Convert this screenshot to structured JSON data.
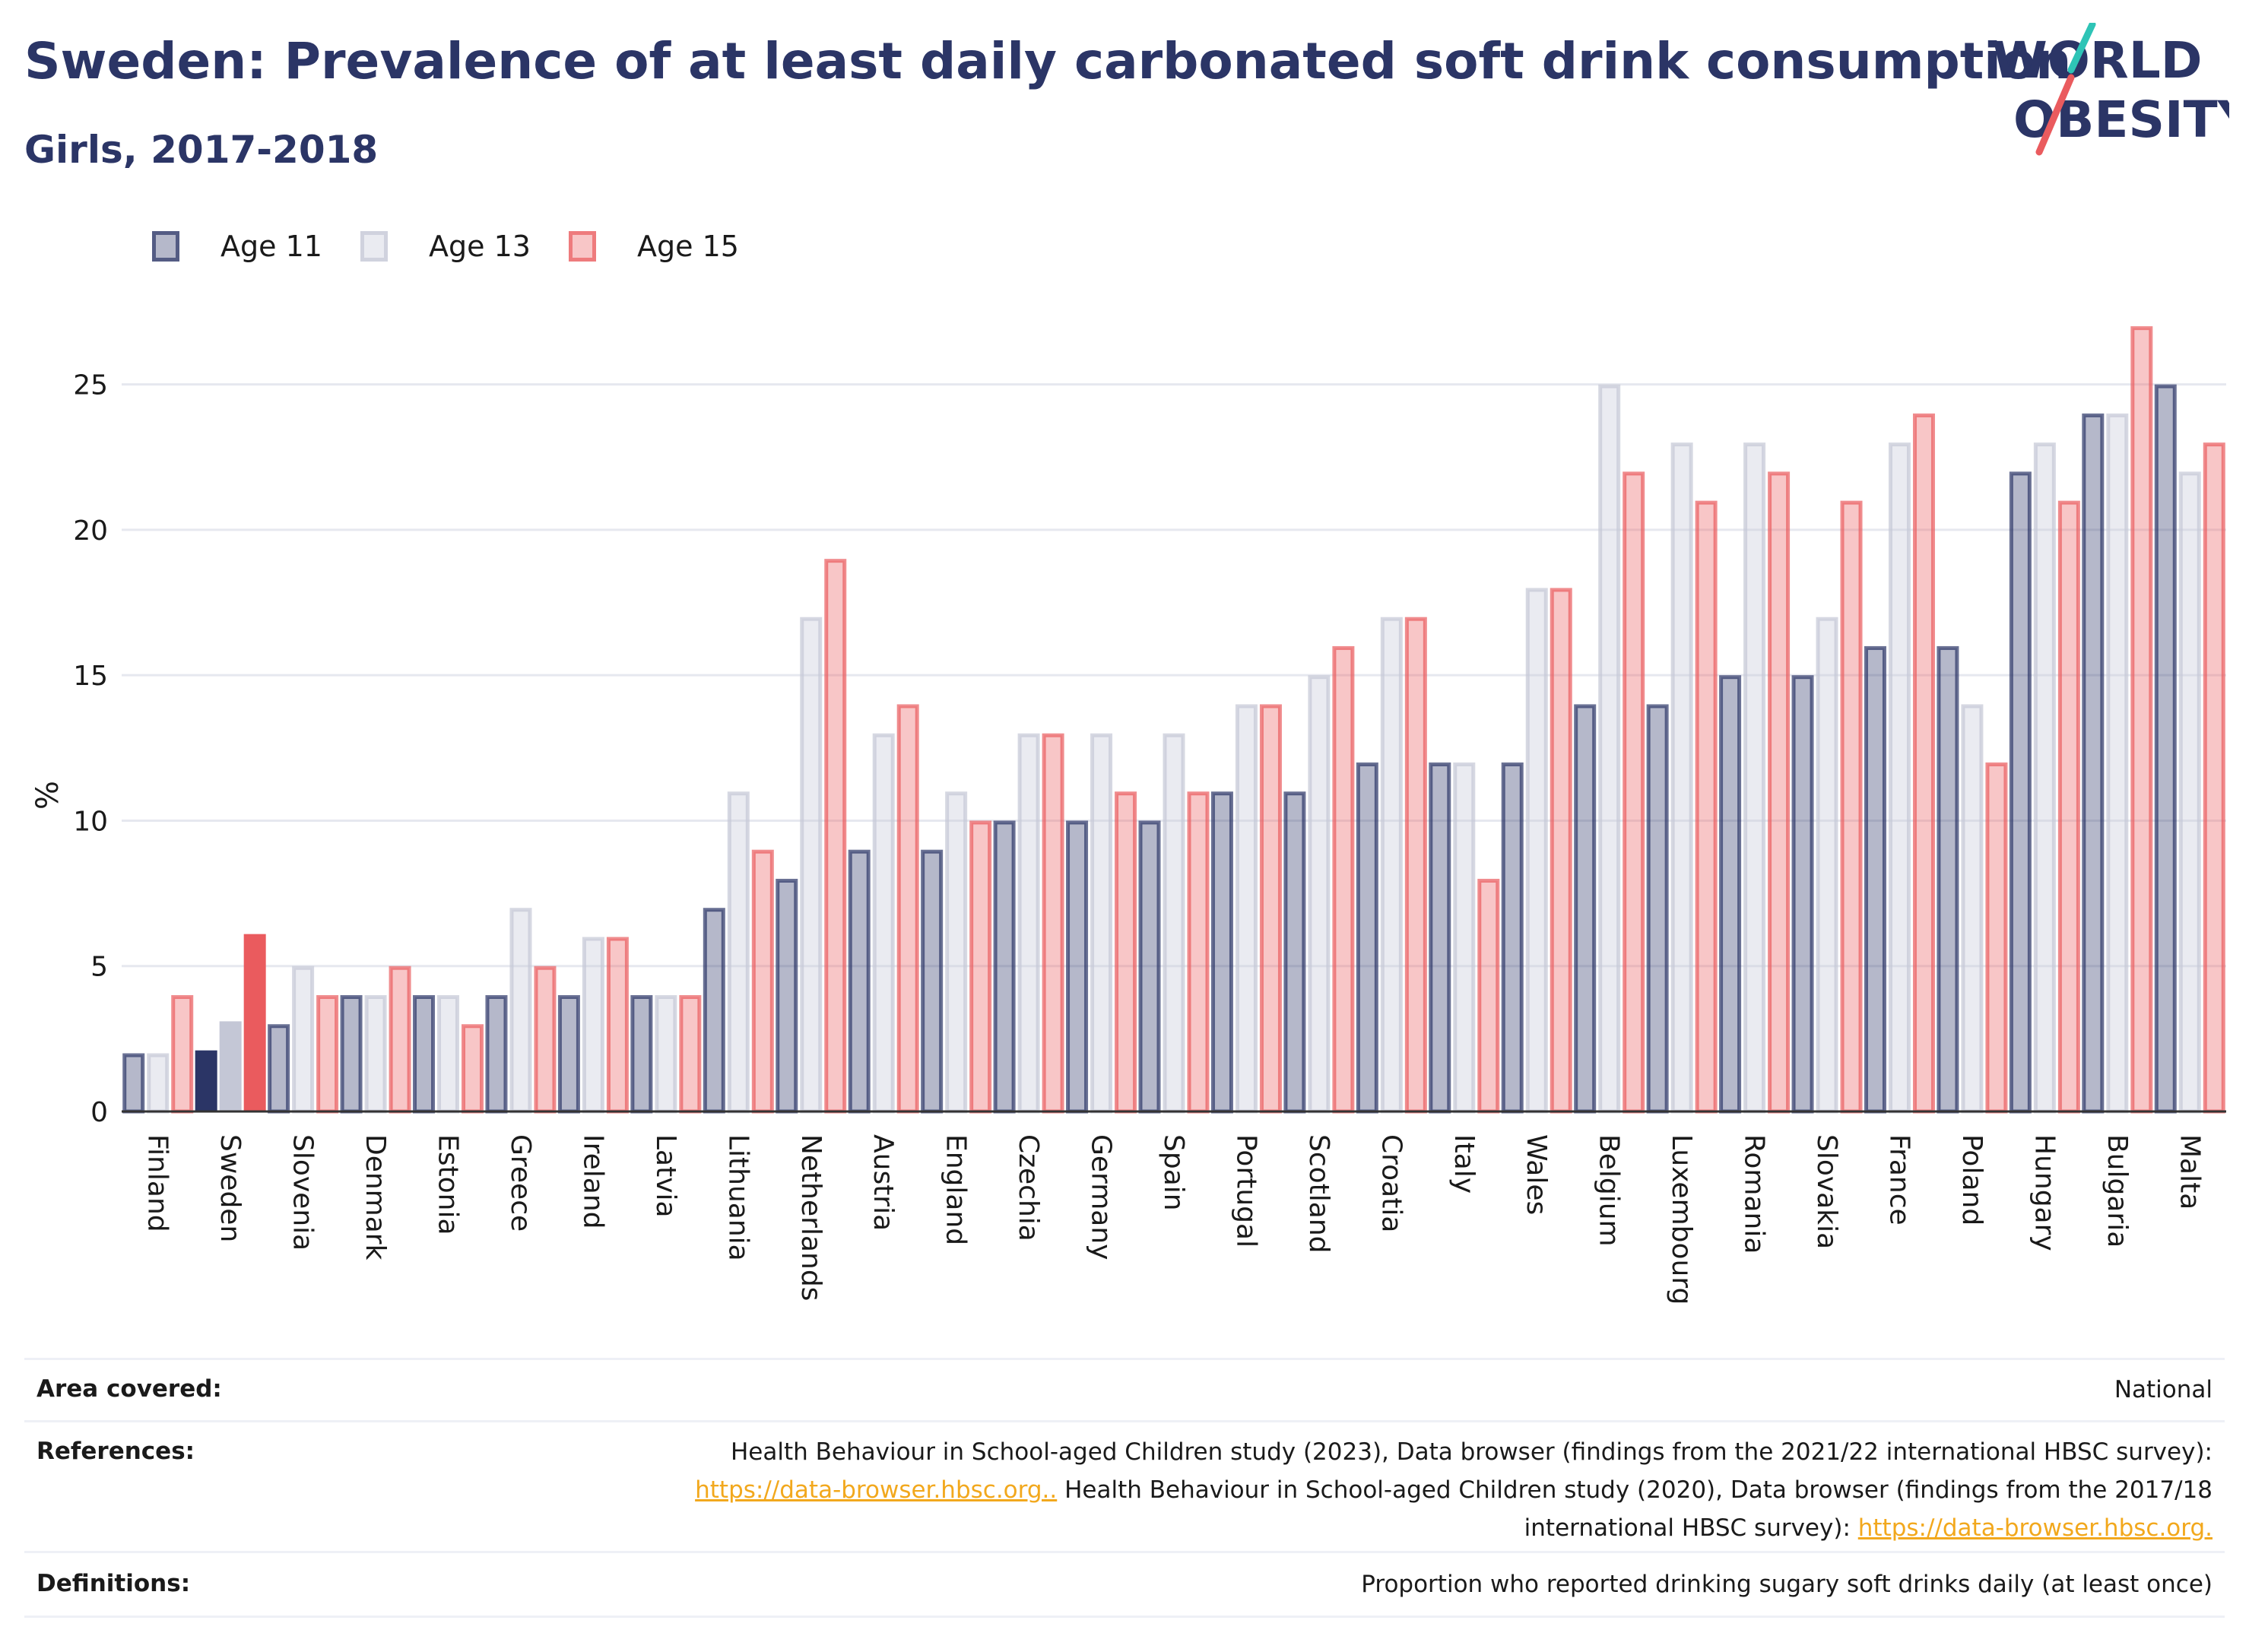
{
  "header": {
    "title": "Sweden: Prevalence of at least daily carbonated soft drink consumption",
    "subtitle": "Girls, 2017-2018"
  },
  "logo": {
    "line1": "WORLD",
    "line2": "OBESITY"
  },
  "legend": [
    {
      "label": "Age 11",
      "color": "#2b3566"
    },
    {
      "label": "Age 13",
      "color": "#c4c7d6"
    },
    {
      "label": "Age 15",
      "color": "#ea5b5e"
    }
  ],
  "chart_data": {
    "type": "bar",
    "ylabel": "%",
    "xlabel": "",
    "ylim": [
      0,
      27.5
    ],
    "yticks": [
      0,
      5,
      10,
      15,
      20,
      25
    ],
    "grid": true,
    "legend_position": "top-left",
    "highlight_category": "Sweden",
    "categories": [
      "Finland",
      "Sweden",
      "Slovenia",
      "Denmark",
      "Estonia",
      "Greece",
      "Ireland",
      "Latvia",
      "Lithuania",
      "Netherlands",
      "Austria",
      "England",
      "Czechia",
      "Germany",
      "Spain",
      "Portugal",
      "Scotland",
      "Croatia",
      "Italy",
      "Wales",
      "Belgium",
      "Luxembourg",
      "Romania",
      "Slovakia",
      "France",
      "Poland",
      "Hungary",
      "Bulgaria",
      "Malta"
    ],
    "series": [
      {
        "name": "Age 11",
        "values": [
          2,
          2.1,
          3,
          4,
          4,
          4,
          4,
          4,
          7,
          8,
          9,
          9,
          10,
          10,
          10,
          11,
          11,
          12,
          12,
          12,
          14,
          14,
          15,
          15,
          16,
          16,
          22,
          24,
          25
        ]
      },
      {
        "name": "Age 13",
        "values": [
          2,
          3.1,
          5,
          4,
          4,
          7,
          6,
          4,
          11,
          17,
          13,
          11,
          13,
          13,
          13,
          14,
          15,
          17,
          12,
          18,
          25,
          23,
          23,
          17,
          23,
          14,
          23,
          24,
          22
        ]
      },
      {
        "name": "Age 15",
        "values": [
          4,
          6.1,
          4,
          5,
          3,
          5,
          6,
          4,
          9,
          19,
          14,
          10,
          13,
          11,
          11,
          14,
          16,
          17,
          8,
          18,
          22,
          21,
          22,
          21,
          24,
          12,
          21,
          27,
          23
        ]
      }
    ]
  },
  "info": {
    "area_label": "Area covered:",
    "area_value": "National",
    "references_label": "References:",
    "references_line1": "Health Behaviour in School-aged Children study (2023), Data browser (findings from the 2021/22 international HBSC survey):",
    "references_link1": "https://data-browser.hbsc.org..",
    "references_line2": " Health Behaviour in School-aged Children study (2020), Data browser (findings from the 2017/18",
    "references_line3": "international HBSC survey): ",
    "references_link2": "https://data-browser.hbsc.org.",
    "definitions_label": "Definitions:",
    "definitions_value": "Proportion who reported drinking sugary soft drinks daily (at least once)"
  }
}
